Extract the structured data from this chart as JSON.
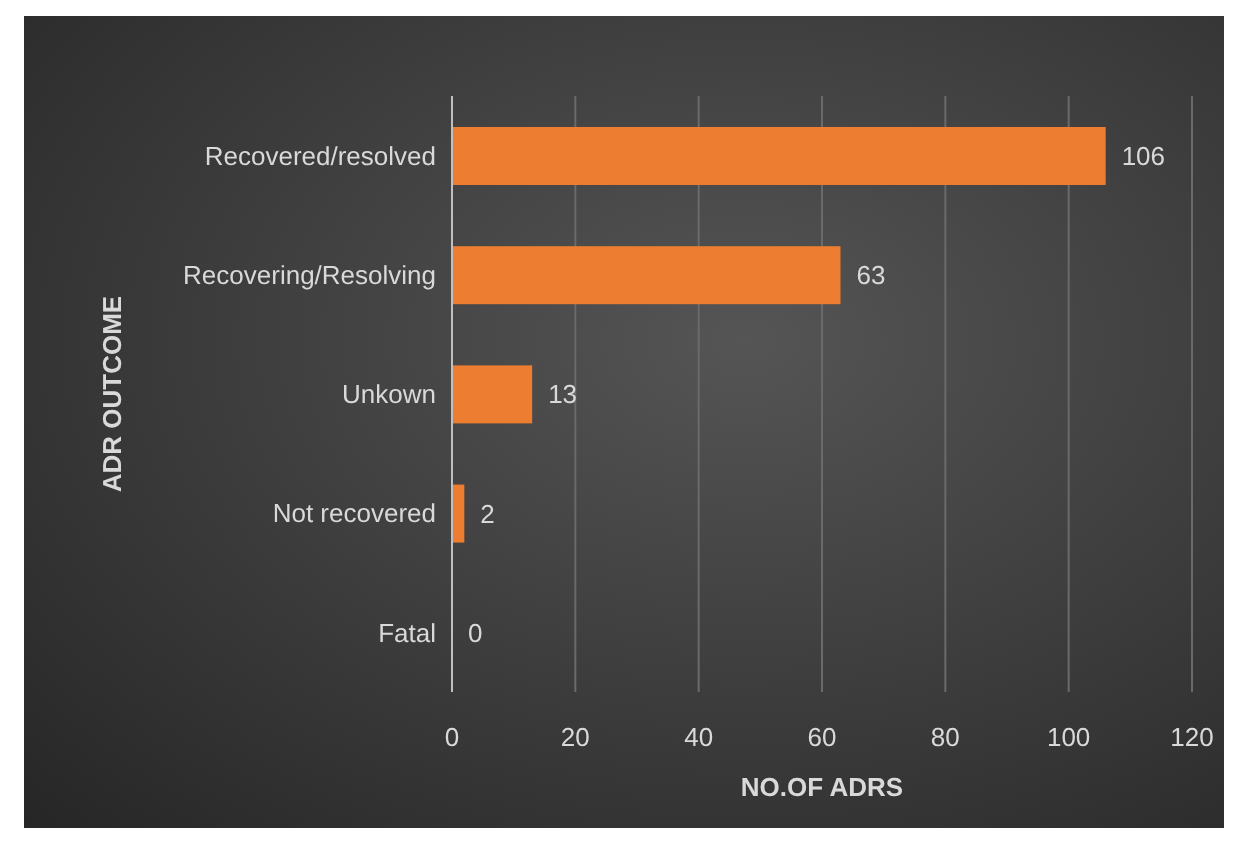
{
  "chart_data": {
    "type": "bar",
    "orientation": "horizontal",
    "xlabel": "NO.OF ADRS",
    "ylabel": "ADR OUTCOME",
    "categories": [
      "Recovered/resolved",
      "Recovering/Resolving",
      "Unkown",
      "Not recovered",
      "Fatal"
    ],
    "values": [
      106,
      63,
      13,
      2,
      0
    ],
    "color": "#ed7d31",
    "xlim": [
      0,
      120
    ],
    "xticks": [
      0,
      20,
      40,
      60,
      80,
      100,
      120
    ],
    "grid": "x",
    "data_labels": true
  }
}
